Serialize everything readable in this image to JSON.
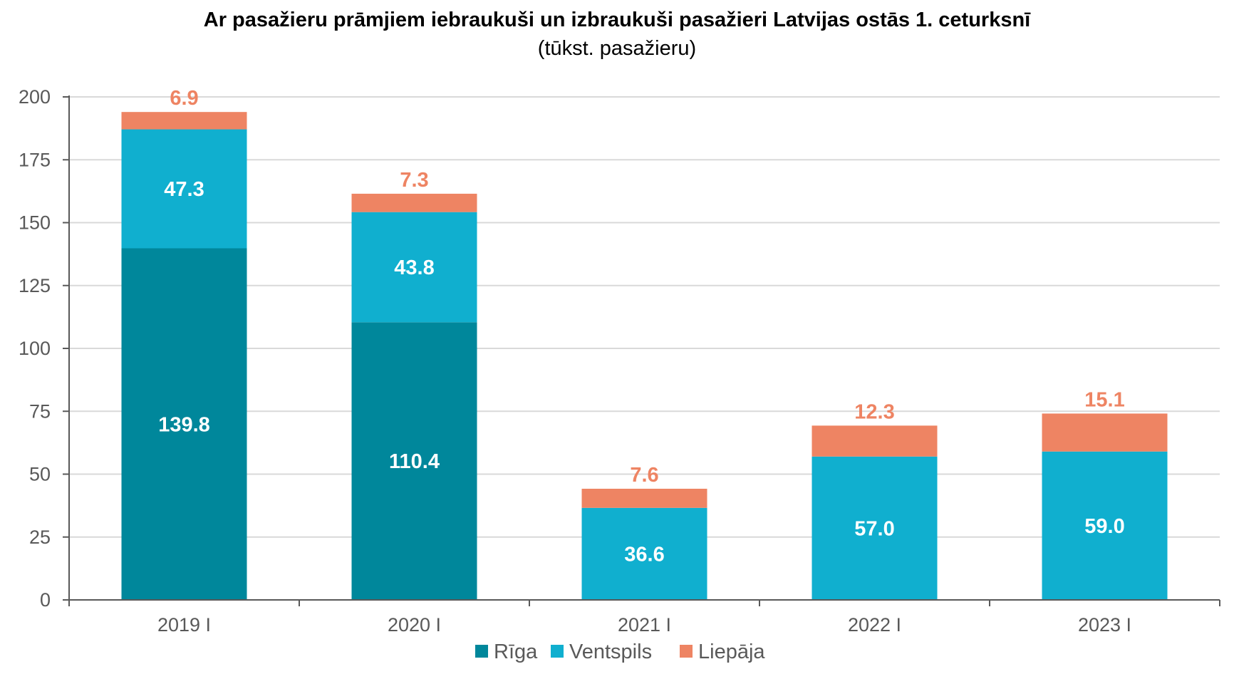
{
  "chart_data": {
    "type": "bar",
    "stacked": true,
    "title": "Ar pasažieru prāmjiem iebraukuši un izbraukuši pasažieri Latvijas ostās 1. ceturksnī",
    "subtitle": "(tūkst. pasažieru)",
    "categories": [
      "2019 I",
      "2020 I",
      "2021 I",
      "2022 I",
      "2023 I"
    ],
    "series": [
      {
        "name": "Rīga",
        "color": "#00879B",
        "label_color": "#FFFFFF",
        "values": [
          139.8,
          110.4,
          0,
          0,
          0
        ]
      },
      {
        "name": "Ventspils",
        "color": "#10AFCF",
        "label_color": "#FFFFFF",
        "values": [
          47.3,
          43.8,
          36.6,
          57.0,
          59.0
        ]
      },
      {
        "name": "Liepāja",
        "color": "#EE8463",
        "label_color": "#EE8463",
        "label_position": "above",
        "values": [
          6.9,
          7.3,
          7.6,
          12.3,
          15.1
        ]
      }
    ],
    "ylim": [
      0,
      200
    ],
    "yticks": [
      0,
      25,
      50,
      75,
      100,
      125,
      150,
      175,
      200
    ],
    "grid": true,
    "legend": "bottom"
  }
}
